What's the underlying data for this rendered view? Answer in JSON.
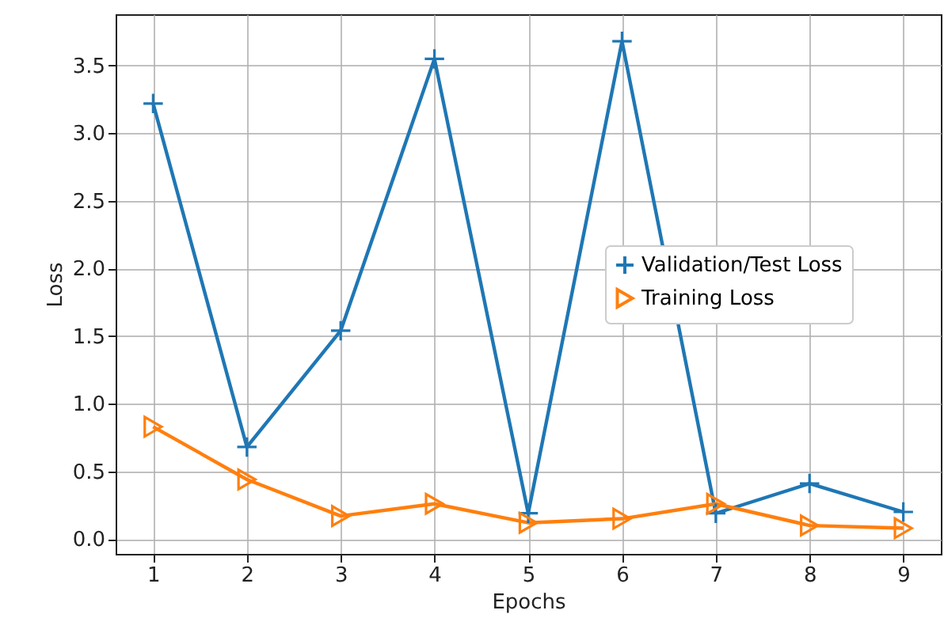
{
  "chart_data": {
    "type": "line",
    "xlabel": "Epochs",
    "ylabel": "Loss",
    "x": [
      1,
      2,
      3,
      4,
      5,
      6,
      7,
      8,
      9
    ],
    "series": [
      {
        "name": "Validation/Test Loss",
        "color": "#1f77b4",
        "marker": "cross",
        "values": [
          3.22,
          0.68,
          1.54,
          3.55,
          0.19,
          3.68,
          0.19,
          0.41,
          0.2
        ]
      },
      {
        "name": "Training Loss",
        "color": "#ff7f0e",
        "marker": "triangle",
        "values": [
          0.83,
          0.44,
          0.17,
          0.26,
          0.12,
          0.15,
          0.26,
          0.1,
          0.08
        ]
      }
    ],
    "xlim": [
      0.6,
      9.4
    ],
    "xticks": [
      1,
      2,
      3,
      4,
      5,
      6,
      7,
      8,
      9
    ],
    "ylim": [
      -0.11,
      3.88
    ],
    "yticks": [
      {
        "value": 0,
        "label": "0.0"
      },
      0.5,
      {
        "value": 1,
        "label": "1.0"
      },
      1.5,
      {
        "value": 2,
        "label": "2.0"
      },
      2.5,
      {
        "value": 3,
        "label": "3.0"
      },
      3.5
    ],
    "grid": true,
    "legend": "right",
    "line_style": "solid"
  }
}
